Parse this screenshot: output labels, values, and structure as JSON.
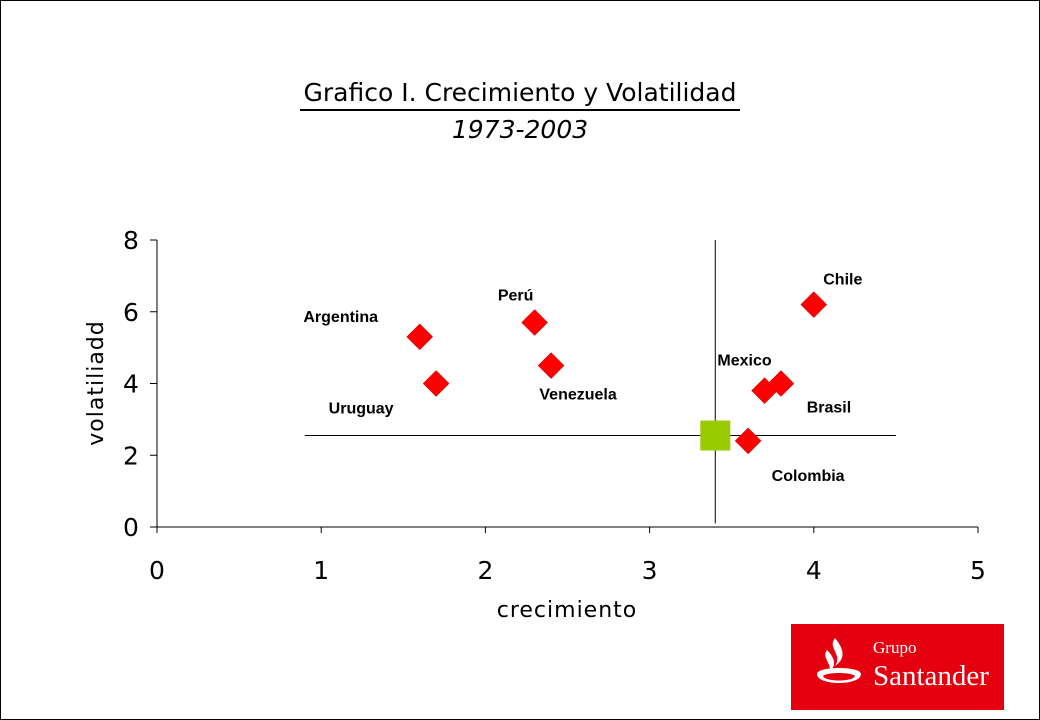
{
  "chart_data": {
    "type": "scatter",
    "title": "Grafico I. Crecimiento y Volatilidad",
    "subtitle": "1973-2003",
    "xlabel": "crecimiento",
    "ylabel": "volatiliadd",
    "xlim": [
      0,
      5
    ],
    "ylim": [
      0,
      8
    ],
    "xticks": [
      "0",
      "1",
      "2",
      "3",
      "4",
      "5"
    ],
    "yticks": [
      "0",
      "2",
      "4",
      "6",
      "8"
    ],
    "points": [
      {
        "label": "Argentina",
        "x": 1.6,
        "y": 5.3
      },
      {
        "label": "Uruguay",
        "x": 1.7,
        "y": 4.0
      },
      {
        "label": "Perú",
        "x": 2.3,
        "y": 5.7
      },
      {
        "label": "Venezuela",
        "x": 2.4,
        "y": 4.5
      },
      {
        "label": "Chile",
        "x": 4.0,
        "y": 6.2
      },
      {
        "label": "Mexico",
        "x": 3.7,
        "y": 3.8
      },
      {
        "label": "Brasil",
        "x": 3.8,
        "y": 4.0
      },
      {
        "label": "Colombia",
        "x": 3.6,
        "y": 2.4
      }
    ],
    "average_point": {
      "x": 3.4,
      "y": 2.55
    },
    "reference_lines": {
      "vertical_x": 3.4,
      "horizontal_y": 2.55
    },
    "colors": {
      "points": "#ff0000",
      "average": "#99cc00",
      "lines": "#000000"
    }
  },
  "logo": {
    "line1": "Grupo",
    "line2": "Santander",
    "color": "#e4000f"
  }
}
